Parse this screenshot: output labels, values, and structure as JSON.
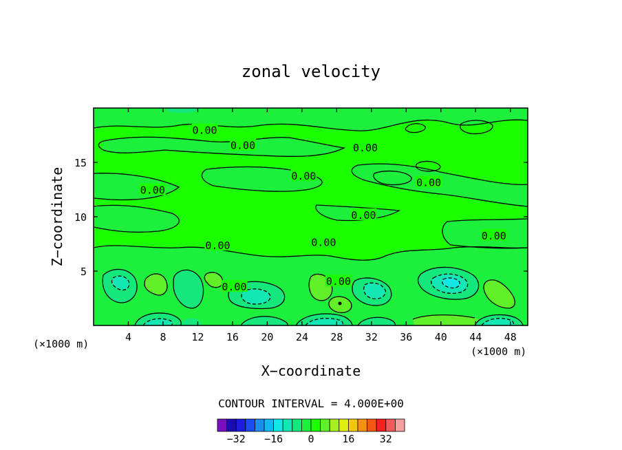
{
  "chart_data": {
    "type": "heatmap",
    "subtype": "filled-contour",
    "title": "zonal velocity",
    "xlabel": "X−coordinate",
    "ylabel": "Z−coordinate",
    "x_unit_left": "(×1000 m)",
    "x_unit_right": "(×1000 m)",
    "xlim": [
      0,
      50
    ],
    "ylim": [
      0,
      20
    ],
    "xticks": [
      4,
      8,
      12,
      16,
      20,
      24,
      28,
      32,
      36,
      40,
      44,
      48
    ],
    "yticks": [
      5,
      10,
      15
    ],
    "contour_interval_text": "CONTOUR INTERVAL = 4.000E+00",
    "contour_interval": 4.0,
    "contour_label": "0.00",
    "contour_label_positions": [
      [
        12.8,
        18.0
      ],
      [
        17.2,
        16.6
      ],
      [
        6.8,
        12.5
      ],
      [
        24.2,
        13.8
      ],
      [
        31.3,
        16.4
      ],
      [
        38.6,
        13.2
      ],
      [
        31.1,
        10.2
      ],
      [
        14.3,
        7.4
      ],
      [
        26.5,
        7.7
      ],
      [
        28.2,
        4.1
      ],
      [
        16.2,
        3.6
      ],
      [
        46.1,
        8.3
      ]
    ],
    "colorbar": {
      "ticks": [
        -32,
        -16,
        0,
        16,
        32
      ],
      "levels": [
        -38,
        -34,
        -30,
        -26,
        -22,
        -18,
        -14,
        -10,
        -6,
        -2,
        2,
        6,
        10,
        14,
        18,
        22,
        26,
        30,
        34,
        38
      ],
      "colors": [
        "#7a0fc0",
        "#1c0cb0",
        "#1c1ce0",
        "#1b4cf0",
        "#1c8ef2",
        "#12b8f0",
        "#13e8e6",
        "#13e8b5",
        "#14e87c",
        "#1cef3c",
        "#1cff00",
        "#60ef28",
        "#a8ef20",
        "#e0ef10",
        "#f0c810",
        "#f59010",
        "#f55810",
        "#f52020",
        "#f55858",
        "#f5a0a0"
      ]
    },
    "dominant_value_range": [
      -2,
      2
    ],
    "notable_features": [
      {
        "x": 7.5,
        "z": 3.0,
        "value": 6,
        "color": "#60ef28"
      },
      {
        "x": 14.5,
        "z": 3.3,
        "value": 6,
        "color": "#60ef28"
      },
      {
        "x": 26.0,
        "z": 3.0,
        "value": 6,
        "color": "#60ef28"
      },
      {
        "x": 45.5,
        "z": 2.5,
        "value": 6,
        "color": "#60ef28"
      },
      {
        "x": 28.2,
        "z": 1.9,
        "value": 6,
        "color": "#60ef28"
      },
      {
        "x": 3.0,
        "z": 3.5,
        "value": -6,
        "color": "#14e87c"
      },
      {
        "x": 11.0,
        "z": 3.5,
        "value": -6,
        "color": "#14e87c"
      },
      {
        "x": 18.5,
        "z": 2.5,
        "value": -6,
        "color": "#14e87c"
      },
      {
        "x": 32.5,
        "z": 3.0,
        "value": -6,
        "color": "#14e87c"
      },
      {
        "x": 40.5,
        "z": 3.8,
        "value": -10,
        "color": "#13e8b5"
      },
      {
        "x": 40.5,
        "z": 4.0,
        "value": -14,
        "color": "#13e8e6"
      },
      {
        "x": 7.0,
        "z": 0.7,
        "value": -10,
        "color": "#13e8b5"
      },
      {
        "x": 26.0,
        "z": 0.7,
        "value": -10,
        "color": "#13e8b5"
      },
      {
        "x": 46.5,
        "z": 0.6,
        "value": -10,
        "color": "#13e8b5"
      }
    ]
  }
}
